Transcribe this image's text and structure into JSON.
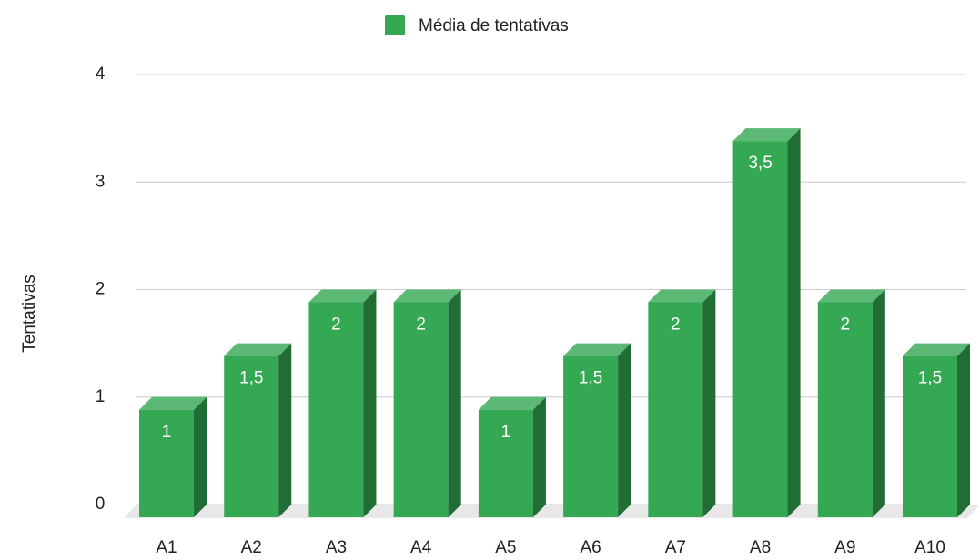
{
  "chart_data": {
    "type": "bar3d",
    "legend": "Média de tentativas",
    "ylabel": "Tentativas",
    "categories": [
      "A1",
      "A2",
      "A3",
      "A4",
      "A5",
      "A6",
      "A7",
      "A8",
      "A9",
      "A10"
    ],
    "values": [
      1,
      1.5,
      2,
      2,
      1,
      1.5,
      2,
      3.5,
      2,
      1.5
    ],
    "value_labels": [
      "1",
      "1,5",
      "2",
      "2",
      "1",
      "1,5",
      "2",
      "3,5",
      "2",
      "1,5"
    ],
    "color": "#34a853",
    "ylim": [
      0,
      4
    ],
    "yticks": [
      0,
      1,
      2,
      3,
      4
    ],
    "grid": true,
    "legend_position": "top"
  }
}
